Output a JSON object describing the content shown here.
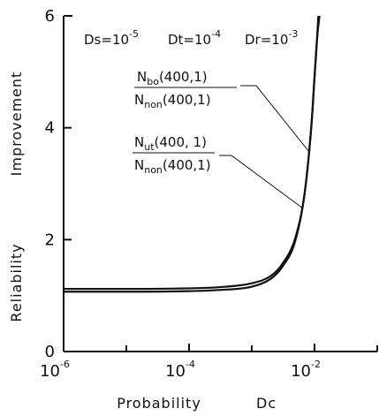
{
  "chart_data": {
    "type": "line",
    "title": "",
    "xlabel": {
      "word": "Probability",
      "symbol": "Dc"
    },
    "ylabel": {
      "top": "Improvement",
      "bottom": "Reliability"
    },
    "x_scale": "log",
    "xlim": [
      1e-06,
      0.1
    ],
    "ylim": [
      0,
      6
    ],
    "x_ticks": [
      {
        "value": 1e-06,
        "base": "10",
        "exp": "-6"
      },
      {
        "value": 0.0001,
        "base": "10",
        "exp": "-4"
      },
      {
        "value": 0.01,
        "base": "10",
        "exp": "-2"
      }
    ],
    "x_minor_ticks": [
      1e-05,
      0.001,
      0.1
    ],
    "y_ticks": [
      {
        "value": 0,
        "label": "0"
      },
      {
        "value": 2,
        "label": "2"
      },
      {
        "value": 4,
        "label": "4"
      },
      {
        "value": 6,
        "label": "6"
      }
    ],
    "params": [
      {
        "name": "Ds",
        "base": "=10",
        "exp": "-5"
      },
      {
        "name": "Dt",
        "base": "=10",
        "exp": "-4"
      },
      {
        "name": "Dr",
        "base": "=10",
        "exp": "-3"
      }
    ],
    "series": [
      {
        "label_num": "N",
        "label_num_sub": "bo",
        "label_num_arg": "(400,1)",
        "label_den": "N",
        "label_den_sub": "non",
        "label_den_arg": "(400,1)",
        "x": [
          1e-06,
          1e-05,
          0.0001,
          0.0003,
          0.001,
          0.002,
          0.003,
          0.005,
          0.007,
          0.009,
          0.01,
          0.011,
          0.012
        ],
        "y": [
          1.12,
          1.12,
          1.13,
          1.15,
          1.22,
          1.35,
          1.55,
          2.05,
          2.85,
          4.1,
          4.9,
          5.6,
          6.0
        ]
      },
      {
        "label_num": "N",
        "label_num_sub": "ut",
        "label_num_arg": "(400, 1)",
        "label_den": "N",
        "label_den_sub": "non",
        "label_den_arg": "(400,1)",
        "x": [
          1e-06,
          1e-05,
          0.0001,
          0.0003,
          0.001,
          0.002,
          0.003,
          0.005,
          0.007,
          0.009,
          0.01,
          0.011,
          0.0115
        ],
        "y": [
          1.07,
          1.07,
          1.08,
          1.1,
          1.16,
          1.3,
          1.5,
          2.0,
          2.85,
          4.1,
          4.9,
          5.6,
          6.0
        ]
      }
    ]
  }
}
